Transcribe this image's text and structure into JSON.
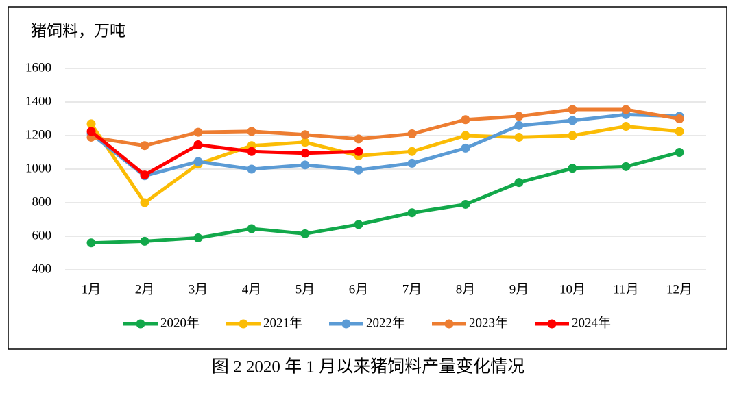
{
  "chart_data": {
    "type": "line",
    "y_label": "猪饲料，万吨",
    "caption": "图 2 2020 年 1 月以来猪饲料产量变化情况",
    "categories": [
      "1月",
      "2月",
      "3月",
      "4月",
      "5月",
      "6月",
      "7月",
      "8月",
      "9月",
      "10月",
      "11月",
      "12月"
    ],
    "ylim": [
      400,
      1600
    ],
    "yticks": [
      400,
      600,
      800,
      1000,
      1200,
      1400,
      1600
    ],
    "grid": true,
    "legend": "bottom",
    "series": [
      {
        "name": "2020年",
        "color": "#12a84a",
        "values": [
          560,
          570,
          590,
          645,
          615,
          670,
          740,
          790,
          920,
          1005,
          1015,
          1100
        ]
      },
      {
        "name": "2021年",
        "color": "#fbbc05",
        "values": [
          1270,
          800,
          1030,
          1140,
          1160,
          1080,
          1105,
          1200,
          1190,
          1200,
          1255,
          1225
        ]
      },
      {
        "name": "2022年",
        "color": "#5b9bd5",
        "values": [
          1210,
          960,
          1045,
          1000,
          1025,
          995,
          1035,
          1125,
          1260,
          1290,
          1325,
          1315
        ]
      },
      {
        "name": "2023年",
        "color": "#ed7d31",
        "values": [
          1190,
          1140,
          1220,
          1225,
          1205,
          1180,
          1210,
          1295,
          1315,
          1355,
          1355,
          1300
        ]
      },
      {
        "name": "2024年",
        "color": "#ff0000",
        "values": [
          1225,
          965,
          1145,
          1105,
          1095,
          1105,
          null,
          null,
          null,
          null,
          null,
          null
        ]
      }
    ]
  }
}
